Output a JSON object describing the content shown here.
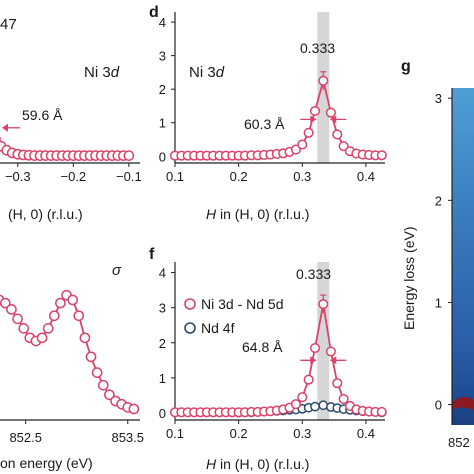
{
  "colors": {
    "red": "#d9436a",
    "navy": "#2d4a6b",
    "highlight": "#d6d6d6",
    "axis": "#222222"
  },
  "panels": {
    "c_partial": {
      "label": "",
      "ni_label": "Ni 3",
      "ni_label_italic": "d",
      "fwhm_label": "59.6 Å",
      "xlabel": "(H, 0) (r.l.u.)",
      "corner_text": "47"
    },
    "d": {
      "label": "d",
      "ni_label": "Ni 3",
      "ni_label_italic": "d",
      "peak_label": "0.333",
      "fwhm_label": "60.3 Å",
      "xlabel_italic": "H",
      "xlabel": " in (H, 0) (r.l.u.)"
    },
    "e_partial": {
      "sigma_label": "σ",
      "xlabel": "on energy (eV)"
    },
    "f": {
      "label": "f",
      "peak_label": "0.333",
      "fwhm_label": "64.8 Å",
      "xlabel_italic": "H",
      "xlabel": " in (H, 0) (r.l.u.)",
      "legend": [
        {
          "text": "Ni 3d - Nd 5d"
        },
        {
          "text": "Nd 4f"
        }
      ]
    },
    "g_partial": {
      "label": "g",
      "ylabel": "Energy loss (eV)",
      "xtick_partial": "852"
    }
  },
  "chart_data": [
    {
      "panel": "c (partial)",
      "type": "line",
      "xlim": [
        -0.35,
        -0.08
      ],
      "ylim": [
        -0.2,
        4.3
      ],
      "xticks": [
        "-0.3",
        "-0.2",
        "-0.1"
      ],
      "x": [
        -0.34,
        -0.33,
        -0.32,
        -0.31,
        -0.3,
        -0.29,
        -0.28,
        -0.27,
        -0.26,
        -0.25,
        -0.24,
        -0.23,
        -0.22,
        -0.21,
        -0.2,
        -0.19,
        -0.18,
        -0.17,
        -0.16,
        -0.15,
        -0.14,
        -0.13,
        -0.12,
        -0.11,
        -0.1
      ],
      "y": [
        0.5,
        0.3,
        0.18,
        0.1,
        0.06,
        0.04,
        0.03,
        0.02,
        0.02,
        0.02,
        0.02,
        0.02,
        0.02,
        0.02,
        0.02,
        0.02,
        0.02,
        0.02,
        0.02,
        0.02,
        0.02,
        0.02,
        0.02,
        0.02,
        0.02
      ]
    },
    {
      "panel": "d",
      "type": "line",
      "xlim": [
        0.1,
        0.43
      ],
      "ylim": [
        -0.2,
        4.3
      ],
      "xticks": [
        "0.1",
        "0.2",
        "0.3",
        "0.4"
      ],
      "yticks": [
        "0",
        "1",
        "2",
        "3",
        "4"
      ],
      "highlight_x": 0.333,
      "x": [
        0.1,
        0.11,
        0.12,
        0.13,
        0.14,
        0.15,
        0.16,
        0.17,
        0.18,
        0.19,
        0.2,
        0.21,
        0.22,
        0.23,
        0.24,
        0.25,
        0.26,
        0.27,
        0.28,
        0.29,
        0.3,
        0.31,
        0.32,
        0.333,
        0.345,
        0.355,
        0.365,
        0.375,
        0.385,
        0.395,
        0.405,
        0.415,
        0.425
      ],
      "y": [
        0.02,
        0.02,
        0.02,
        0.02,
        0.02,
        0.02,
        0.02,
        0.02,
        0.02,
        0.02,
        0.02,
        0.02,
        0.03,
        0.03,
        0.04,
        0.05,
        0.07,
        0.09,
        0.13,
        0.2,
        0.35,
        0.7,
        1.35,
        2.25,
        1.3,
        0.65,
        0.3,
        0.15,
        0.08,
        0.05,
        0.04,
        0.03,
        0.03
      ]
    },
    {
      "panel": "e (partial)",
      "type": "line",
      "xlim": [
        852.15,
        853.62
      ],
      "xticks": [
        "852.5",
        "853.5"
      ],
      "x": [
        852.18,
        852.24,
        852.3,
        852.36,
        852.42,
        852.48,
        852.54,
        852.6,
        852.66,
        852.72,
        852.78,
        852.84,
        852.9,
        852.96,
        853.02,
        853.08,
        853.14,
        853.2,
        853.26,
        853.32,
        853.38,
        853.44,
        853.5,
        853.56
      ],
      "y": [
        0.78,
        0.76,
        0.74,
        0.7,
        0.64,
        0.58,
        0.52,
        0.5,
        0.52,
        0.58,
        0.66,
        0.74,
        0.79,
        0.76,
        0.66,
        0.52,
        0.4,
        0.3,
        0.22,
        0.16,
        0.12,
        0.1,
        0.08,
        0.07
      ]
    },
    {
      "panel": "f",
      "type": "line",
      "xlim": [
        0.1,
        0.43
      ],
      "ylim": [
        -0.2,
        4.3
      ],
      "xticks": [
        "0.1",
        "0.2",
        "0.3",
        "0.4"
      ],
      "yticks": [
        "0",
        "1",
        "2",
        "3",
        "4"
      ],
      "highlight_x": 0.333,
      "series": [
        {
          "name": "Ni 3d - Nd 5d",
          "x": [
            0.1,
            0.11,
            0.12,
            0.13,
            0.14,
            0.15,
            0.16,
            0.17,
            0.18,
            0.19,
            0.2,
            0.21,
            0.22,
            0.23,
            0.24,
            0.25,
            0.26,
            0.27,
            0.28,
            0.29,
            0.3,
            0.31,
            0.32,
            0.333,
            0.345,
            0.355,
            0.365,
            0.375,
            0.385,
            0.395,
            0.405,
            0.415,
            0.425
          ],
          "y": [
            0.02,
            0.02,
            0.02,
            0.02,
            0.02,
            0.02,
            0.02,
            0.02,
            0.02,
            0.02,
            0.02,
            0.02,
            0.03,
            0.03,
            0.04,
            0.05,
            0.07,
            0.1,
            0.15,
            0.25,
            0.45,
            0.95,
            1.85,
            3.1,
            1.75,
            0.85,
            0.4,
            0.2,
            0.1,
            0.06,
            0.04,
            0.03,
            0.03
          ]
        },
        {
          "name": "Nd 4f",
          "x": [
            0.2,
            0.21,
            0.22,
            0.23,
            0.24,
            0.25,
            0.26,
            0.27,
            0.28,
            0.29,
            0.3,
            0.31,
            0.32,
            0.333,
            0.345,
            0.355,
            0.365,
            0.375,
            0.385,
            0.395,
            0.405,
            0.415,
            0.425
          ],
          "y": [
            0.01,
            0.02,
            0.02,
            0.03,
            0.04,
            0.05,
            0.06,
            0.07,
            0.09,
            0.1,
            0.12,
            0.15,
            0.18,
            0.22,
            0.17,
            0.14,
            0.11,
            0.09,
            0.07,
            0.05,
            0.04,
            0.03,
            0.02
          ]
        }
      ]
    },
    {
      "panel": "g (partial)",
      "type": "heatmap",
      "ylim": [
        -0.2,
        3.1
      ],
      "yticks": [
        "0",
        "1",
        "2",
        "3"
      ],
      "ylabel": "Energy loss (eV)"
    }
  ]
}
